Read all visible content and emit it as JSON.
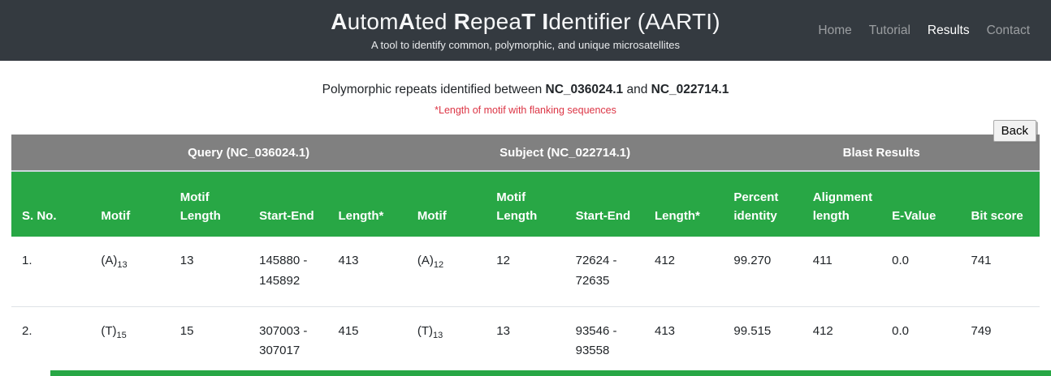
{
  "header": {
    "title_segments": [
      {
        "text": "A",
        "bold": true
      },
      {
        "text": "utom",
        "bold": false
      },
      {
        "text": "A",
        "bold": true
      },
      {
        "text": "ted ",
        "bold": false
      },
      {
        "text": "R",
        "bold": true
      },
      {
        "text": "epea",
        "bold": false
      },
      {
        "text": "T",
        "bold": true
      },
      {
        "text": " ",
        "bold": false
      },
      {
        "text": "I",
        "bold": true
      },
      {
        "text": "dentifier (AARTI)",
        "bold": false
      }
    ],
    "subtitle": "A tool to identify common, polymorphic, and unique microsatellites",
    "nav": [
      {
        "label": "Home",
        "active": false
      },
      {
        "label": "Tutorial",
        "active": false
      },
      {
        "label": "Results",
        "active": true
      },
      {
        "label": "Contact",
        "active": false
      }
    ]
  },
  "toolbar": {
    "back_label": "Back"
  },
  "caption": {
    "prefix": "Polymorphic repeats identified between ",
    "query_accession": "NC_036024.1",
    "connector": " and ",
    "subject_accession": "NC_022714.1"
  },
  "note": "*Length of motif with flanking sequences",
  "table": {
    "groups": {
      "query": "Query (NC_036024.1)",
      "subject": "Subject (NC_022714.1)",
      "blast": "Blast Results"
    },
    "columns": [
      "S. No.",
      "Motif",
      "Motif Length",
      "Start-End",
      "Length*",
      "Motif",
      "Motif Length",
      "Start-End",
      "Length*",
      "Percent identity",
      "Alignment length",
      "E-Value",
      "Bit score"
    ],
    "rows": [
      {
        "sno": "1.",
        "q_motif_base": "(A)",
        "q_motif_sub": "13",
        "q_motif_length": "13",
        "q_start_end": "145880 - 145892",
        "q_length": "413",
        "s_motif_base": "(A)",
        "s_motif_sub": "12",
        "s_motif_length": "12",
        "s_start_end": "72624 - 72635",
        "s_length": "412",
        "percent_identity": "99.270",
        "alignment_length": "411",
        "e_value": "0.0",
        "bit_score": "741"
      },
      {
        "sno": "2.",
        "q_motif_base": "(T)",
        "q_motif_sub": "15",
        "q_motif_length": "15",
        "q_start_end": "307003 - 307017",
        "q_length": "415",
        "s_motif_base": "(T)",
        "s_motif_sub": "13",
        "s_motif_length": "13",
        "s_start_end": "93546 - 93558",
        "s_length": "413",
        "percent_identity": "99.515",
        "alignment_length": "412",
        "e_value": "0.0",
        "bit_score": "749"
      }
    ]
  },
  "colors": {
    "navbar_bg": "#343a40",
    "group_header_bg": "#808080",
    "column_header_bg": "#28a745",
    "note_red": "#dc3545",
    "accent_green": "#28a745"
  }
}
